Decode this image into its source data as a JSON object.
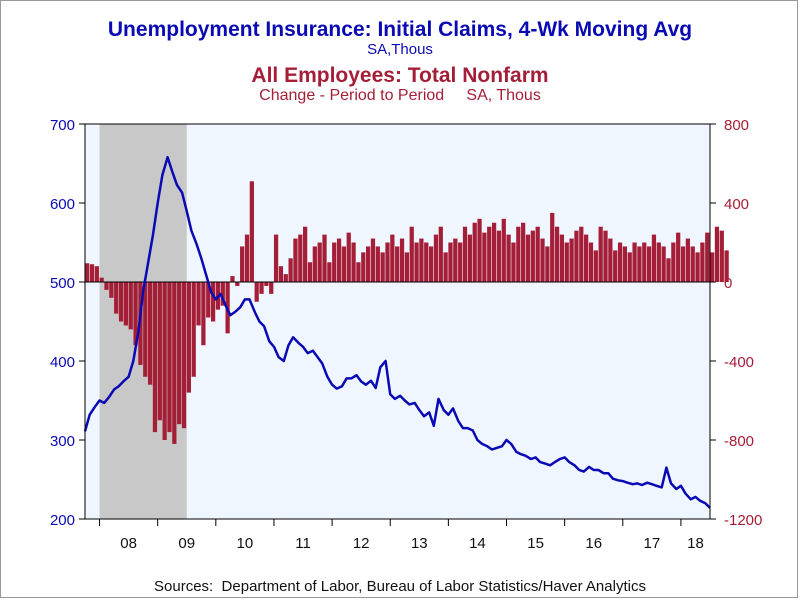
{
  "titles": {
    "line1": "Unemployment Insurance: Initial Claims, 4-Wk Moving Avg",
    "line2": "SA,Thous",
    "line3": "All Employees: Total Nonfarm",
    "line4": "Change - Period to Period     SA, Thous"
  },
  "source": "Sources:  Department of Labor, Bureau of Labor Statistics/Haver Analytics",
  "colors": {
    "claims": "#0a0ab4",
    "payrolls": "#a51e37",
    "plot_bg": "#f0f6ff",
    "recession": "#c8c8c8"
  },
  "chart_data": {
    "type": "bar",
    "x_tick_labels": [
      "08",
      "09",
      "10",
      "11",
      "12",
      "13",
      "14",
      "15",
      "16",
      "17",
      "18"
    ],
    "x_range": [
      2007.75,
      2018.5
    ],
    "recession": [
      2008.0,
      2009.5
    ],
    "left_axis": {
      "ylim": [
        200,
        700
      ],
      "ticks": [
        "700",
        "600",
        "500",
        "400",
        "300",
        "200"
      ]
    },
    "right_axis": {
      "ylim": [
        -1200,
        800
      ],
      "ticks": [
        "800",
        "400",
        "0",
        "-400",
        "-800",
        "-1200"
      ]
    },
    "series": [
      {
        "name": "Unemployment Insurance: Initial Claims, 4-Wk Moving Avg",
        "type": "line",
        "axis": "left",
        "points": [
          [
            2007.75,
            311
          ],
          [
            2007.83,
            332
          ],
          [
            2007.92,
            342
          ],
          [
            2008.0,
            350
          ],
          [
            2008.08,
            347
          ],
          [
            2008.17,
            355
          ],
          [
            2008.25,
            364
          ],
          [
            2008.33,
            368
          ],
          [
            2008.42,
            375
          ],
          [
            2008.5,
            380
          ],
          [
            2008.58,
            400
          ],
          [
            2008.67,
            438
          ],
          [
            2008.75,
            488
          ],
          [
            2008.83,
            522
          ],
          [
            2008.92,
            560
          ],
          [
            2009.0,
            600
          ],
          [
            2009.08,
            635
          ],
          [
            2009.17,
            658
          ],
          [
            2009.25,
            640
          ],
          [
            2009.33,
            623
          ],
          [
            2009.42,
            613
          ],
          [
            2009.5,
            590
          ],
          [
            2009.58,
            565
          ],
          [
            2009.67,
            548
          ],
          [
            2009.75,
            530
          ],
          [
            2009.83,
            510
          ],
          [
            2009.92,
            487
          ],
          [
            2010.0,
            478
          ],
          [
            2010.08,
            485
          ],
          [
            2010.17,
            470
          ],
          [
            2010.25,
            458
          ],
          [
            2010.33,
            462
          ],
          [
            2010.42,
            468
          ],
          [
            2010.5,
            478
          ],
          [
            2010.58,
            478
          ],
          [
            2010.67,
            462
          ],
          [
            2010.75,
            450
          ],
          [
            2010.83,
            444
          ],
          [
            2010.92,
            425
          ],
          [
            2011.0,
            418
          ],
          [
            2011.08,
            405
          ],
          [
            2011.17,
            400
          ],
          [
            2011.25,
            420
          ],
          [
            2011.33,
            430
          ],
          [
            2011.42,
            423
          ],
          [
            2011.5,
            418
          ],
          [
            2011.58,
            410
          ],
          [
            2011.67,
            413
          ],
          [
            2011.75,
            405
          ],
          [
            2011.83,
            397
          ],
          [
            2011.92,
            380
          ],
          [
            2012.0,
            370
          ],
          [
            2012.08,
            365
          ],
          [
            2012.17,
            368
          ],
          [
            2012.25,
            378
          ],
          [
            2012.33,
            378
          ],
          [
            2012.42,
            382
          ],
          [
            2012.5,
            374
          ],
          [
            2012.58,
            370
          ],
          [
            2012.67,
            375
          ],
          [
            2012.75,
            366
          ],
          [
            2012.83,
            392
          ],
          [
            2012.92,
            400
          ],
          [
            2013.0,
            358
          ],
          [
            2013.08,
            352
          ],
          [
            2013.17,
            356
          ],
          [
            2013.25,
            350
          ],
          [
            2013.33,
            345
          ],
          [
            2013.42,
            347
          ],
          [
            2013.5,
            338
          ],
          [
            2013.58,
            330
          ],
          [
            2013.67,
            335
          ],
          [
            2013.75,
            318
          ],
          [
            2013.83,
            352
          ],
          [
            2013.92,
            338
          ],
          [
            2014.0,
            332
          ],
          [
            2014.08,
            340
          ],
          [
            2014.17,
            324
          ],
          [
            2014.25,
            315
          ],
          [
            2014.33,
            315
          ],
          [
            2014.42,
            312
          ],
          [
            2014.5,
            300
          ],
          [
            2014.58,
            295
          ],
          [
            2014.67,
            292
          ],
          [
            2014.75,
            288
          ],
          [
            2014.83,
            290
          ],
          [
            2014.92,
            292
          ],
          [
            2015.0,
            300
          ],
          [
            2015.08,
            295
          ],
          [
            2015.17,
            285
          ],
          [
            2015.25,
            282
          ],
          [
            2015.33,
            280
          ],
          [
            2015.42,
            276
          ],
          [
            2015.5,
            278
          ],
          [
            2015.58,
            272
          ],
          [
            2015.67,
            270
          ],
          [
            2015.75,
            268
          ],
          [
            2015.83,
            272
          ],
          [
            2015.92,
            276
          ],
          [
            2016.0,
            278
          ],
          [
            2016.08,
            272
          ],
          [
            2016.17,
            268
          ],
          [
            2016.25,
            262
          ],
          [
            2016.33,
            260
          ],
          [
            2016.42,
            266
          ],
          [
            2016.5,
            262
          ],
          [
            2016.58,
            262
          ],
          [
            2016.67,
            258
          ],
          [
            2016.75,
            258
          ],
          [
            2016.83,
            251
          ],
          [
            2016.92,
            249
          ],
          [
            2017.0,
            248
          ],
          [
            2017.08,
            246
          ],
          [
            2017.17,
            244
          ],
          [
            2017.25,
            245
          ],
          [
            2017.33,
            243
          ],
          [
            2017.42,
            246
          ],
          [
            2017.5,
            244
          ],
          [
            2017.58,
            242
          ],
          [
            2017.67,
            240
          ],
          [
            2017.75,
            265
          ],
          [
            2017.83,
            245
          ],
          [
            2017.92,
            238
          ],
          [
            2018.0,
            242
          ],
          [
            2018.08,
            232
          ],
          [
            2018.17,
            225
          ],
          [
            2018.25,
            228
          ],
          [
            2018.33,
            223
          ],
          [
            2018.42,
            220
          ],
          [
            2018.5,
            214
          ]
        ]
      },
      {
        "name": "All Employees: Total Nonfarm",
        "type": "bar",
        "axis": "right",
        "start": 2007.75,
        "step": 0.08333,
        "values": [
          95,
          90,
          80,
          22,
          -40,
          -80,
          -160,
          -200,
          -220,
          -240,
          -320,
          -420,
          -480,
          -520,
          -760,
          -700,
          -800,
          -760,
          -820,
          -720,
          -740,
          -560,
          -480,
          -220,
          -320,
          -180,
          -200,
          -140,
          -120,
          -260,
          30,
          -20,
          180,
          240,
          510,
          -100,
          -60,
          -20,
          -60,
          240,
          80,
          40,
          120,
          220,
          240,
          280,
          100,
          180,
          200,
          240,
          100,
          200,
          220,
          180,
          250,
          200,
          100,
          150,
          180,
          220,
          180,
          150,
          200,
          240,
          180,
          220,
          150,
          280,
          200,
          220,
          200,
          180,
          240,
          280,
          150,
          200,
          220,
          200,
          280,
          240,
          300,
          320,
          250,
          280,
          300,
          260,
          320,
          240,
          200,
          280,
          300,
          240,
          260,
          280,
          220,
          180,
          350,
          280,
          240,
          200,
          220,
          260,
          280,
          240,
          200,
          160,
          280,
          260,
          220,
          160,
          200,
          180,
          150,
          200,
          180,
          200,
          180,
          240,
          200,
          180,
          120,
          200,
          250,
          180,
          220,
          180,
          150,
          200,
          250,
          150,
          280,
          260,
          160
        ]
      }
    ]
  }
}
